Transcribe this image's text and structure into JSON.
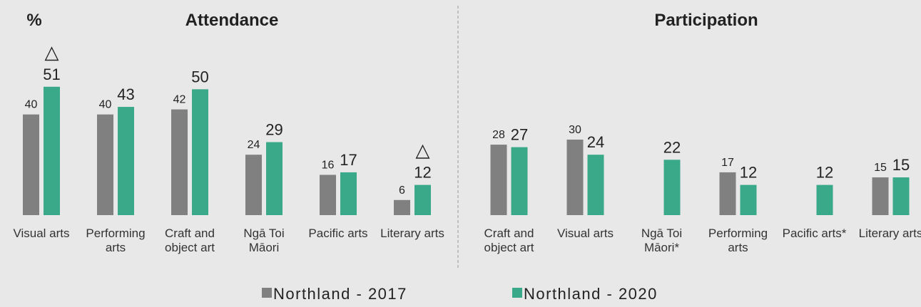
{
  "chart_data": [
    {
      "type": "bar",
      "title": "Attendance",
      "ylabel": "%",
      "categories": [
        "Visual arts",
        "Performing arts",
        "Craft and object art",
        "Ngā Toi Māori",
        "Pacific arts",
        "Literary arts"
      ],
      "series": [
        {
          "name": "Northland - 2017",
          "color": "#808080",
          "values": [
            40,
            40,
            42,
            24,
            16,
            6
          ]
        },
        {
          "name": "Northland - 2020",
          "color": "#3aa989",
          "values": [
            51,
            43,
            50,
            29,
            17,
            12
          ],
          "markers": [
            "△",
            null,
            null,
            null,
            null,
            "△"
          ]
        }
      ],
      "ylim": [
        0,
        60
      ]
    },
    {
      "type": "bar",
      "title": "Participation",
      "categories": [
        "Craft and object art",
        "Visual arts",
        "Ngā Toi Māori*",
        "Performing arts",
        "Pacific arts*",
        "Literary arts"
      ],
      "series": [
        {
          "color": "#808080",
          "values": [
            28,
            30,
            null,
            17,
            null,
            15
          ]
        },
        {
          "color": "#3aa989",
          "values": [
            27,
            24,
            22,
            12,
            12,
            15
          ]
        }
      ],
      "ylim": [
        0,
        60
      ]
    }
  ]
}
